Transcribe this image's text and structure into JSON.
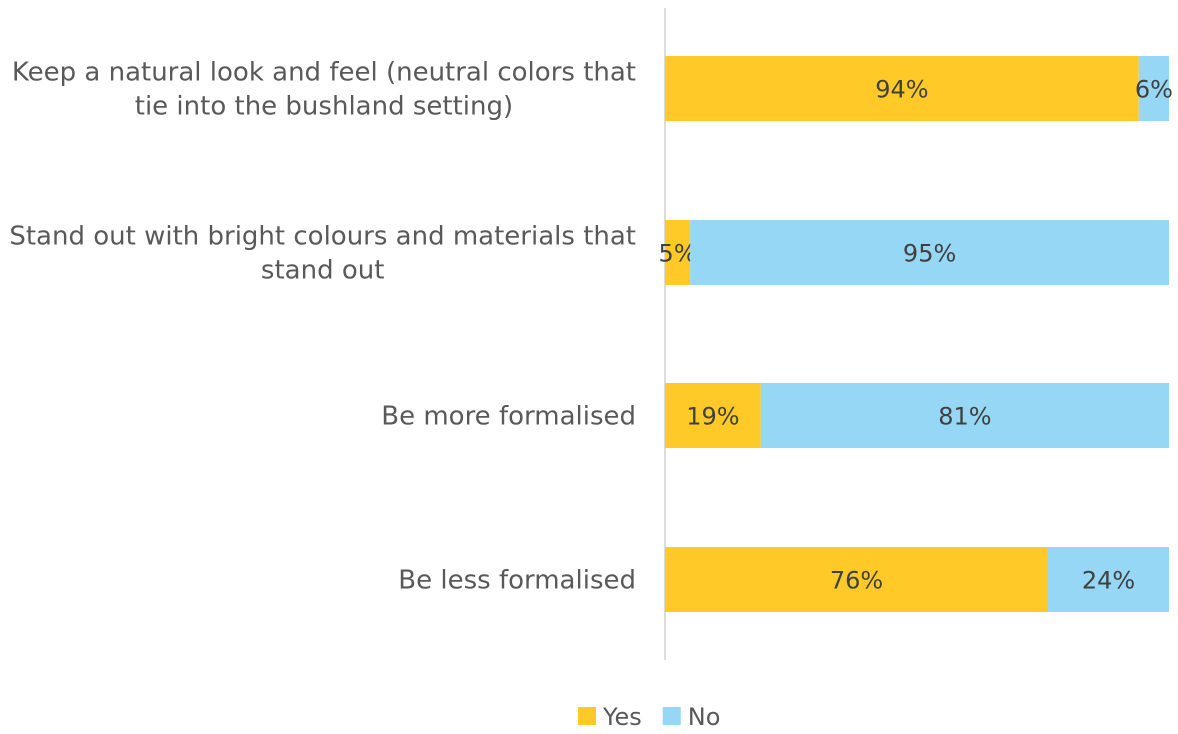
{
  "chart_data": {
    "type": "bar",
    "orientation": "horizontal",
    "stacked": true,
    "percent_scale": true,
    "xlim": [
      0,
      100
    ],
    "categories": [
      [
        "Keep a natural look and feel (neutral colors that",
        "tie into the bushland setting)"
      ],
      [
        "Stand out with bright colours and materials that",
        "stand out"
      ],
      [
        "Be more formalised"
      ],
      [
        "Be less formalised"
      ]
    ],
    "series": [
      {
        "name": "Yes",
        "color": "#FFCA28",
        "values": [
          94,
          5,
          19,
          76
        ],
        "labels": [
          "94%",
          "5%",
          "19%",
          "76%"
        ]
      },
      {
        "name": "No",
        "color": "#95D7F5",
        "values": [
          6,
          95,
          81,
          24
        ],
        "labels": [
          "6%",
          "95%",
          "81%",
          "24%"
        ]
      }
    ],
    "legend_position": "bottom",
    "grid": false
  }
}
